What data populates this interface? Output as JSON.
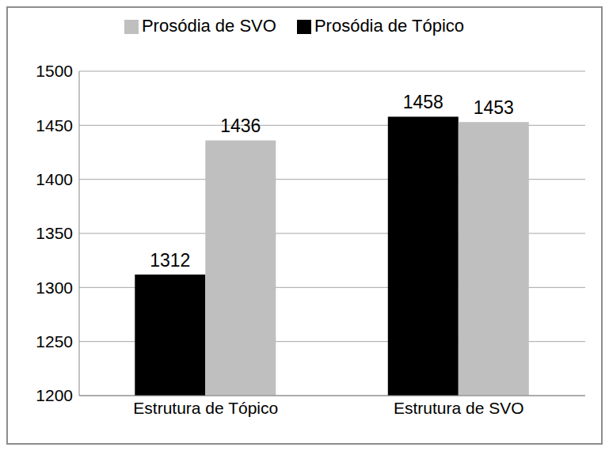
{
  "chart_data": {
    "type": "bar",
    "categories": [
      "Estrutura de Tópico",
      "Estrutura de SVO"
    ],
    "series": [
      {
        "name": "Prosódia de Tópico",
        "color": "#000000",
        "values": [
          1312,
          1458
        ]
      },
      {
        "name": "Prosódia de SVO",
        "color": "#bfbfbf",
        "values": [
          1436,
          1453
        ]
      }
    ],
    "ylim": [
      1200,
      1500
    ],
    "yticks": [
      1200,
      1250,
      1300,
      1350,
      1400,
      1450,
      1500
    ],
    "grid": true,
    "legend": "top",
    "data_labels": true
  }
}
